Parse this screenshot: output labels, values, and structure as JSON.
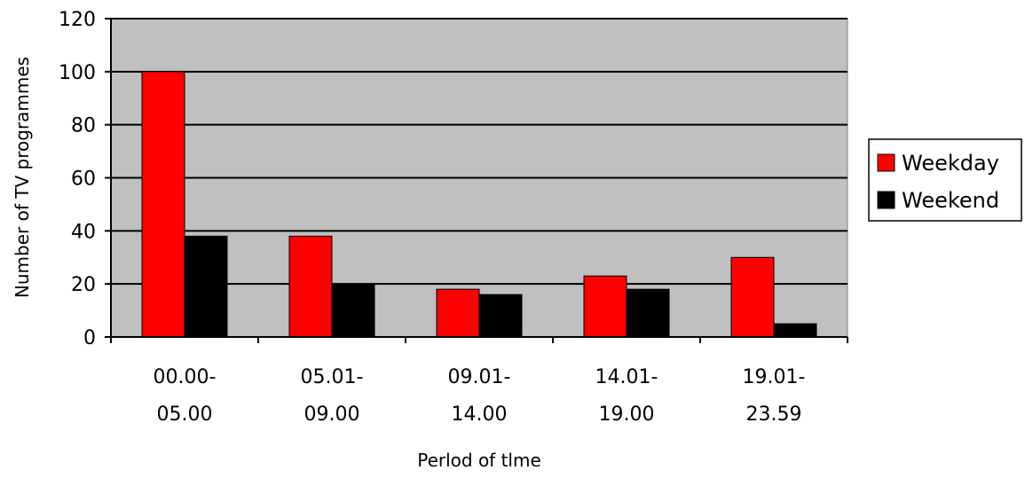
{
  "chart_data": {
    "type": "bar",
    "title": "",
    "xlabel": "Perlod of tlme",
    "ylabel": "Number of TV programmes",
    "ylim": [
      0,
      120
    ],
    "yticks": [
      0,
      20,
      40,
      60,
      80,
      100,
      120
    ],
    "grid": true,
    "legend_position": "right",
    "plot_background": "#c0c0c0",
    "categories": [
      [
        "00.00-",
        "05.00"
      ],
      [
        "05.01-",
        "09.00"
      ],
      [
        "09.01-",
        "14.00"
      ],
      [
        "14.01-",
        "19.00"
      ],
      [
        "19.01-",
        "23.59"
      ]
    ],
    "series": [
      {
        "name": "Weekday",
        "color": "#ff0000",
        "values": [
          100,
          38,
          18,
          23,
          30
        ]
      },
      {
        "name": "Weekend",
        "color": "#000000",
        "values": [
          38,
          20,
          16,
          18,
          5
        ]
      }
    ]
  }
}
